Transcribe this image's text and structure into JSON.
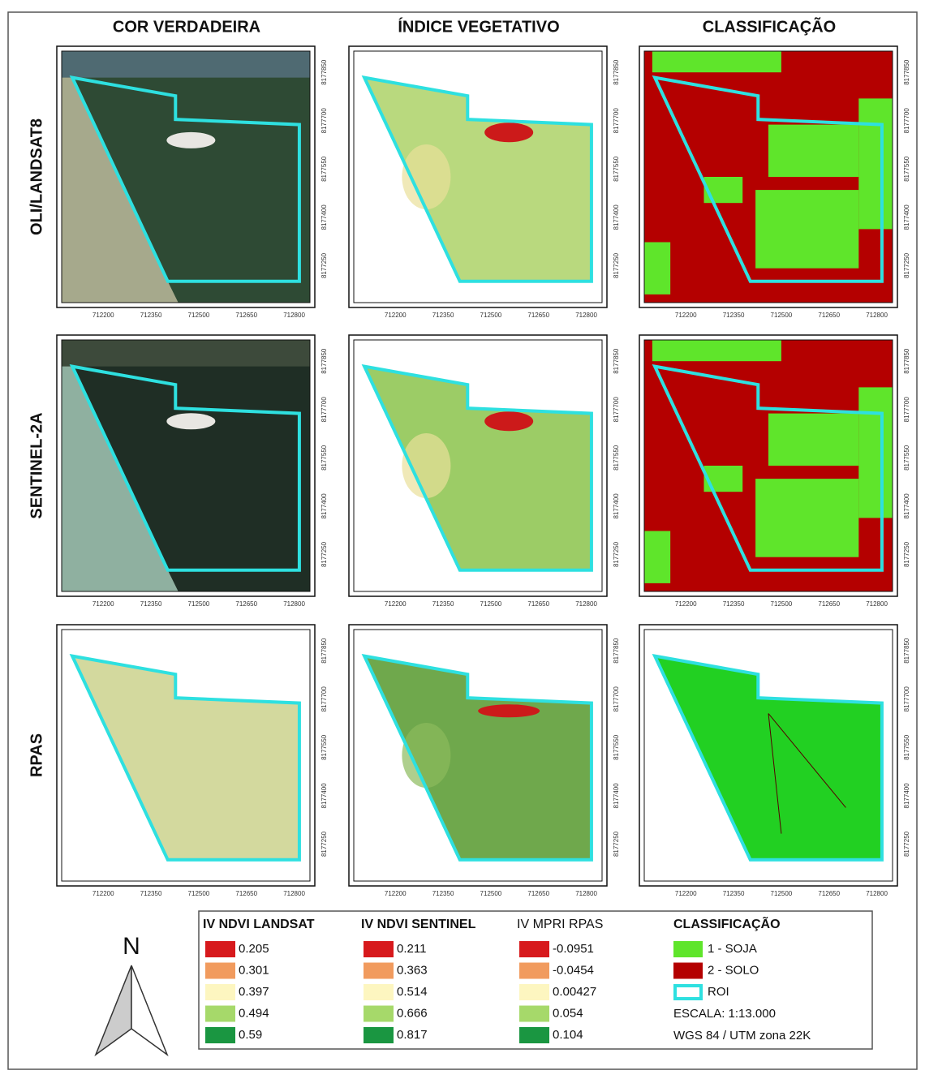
{
  "columns": [
    "COR VERDADEIRA",
    "ÍNDICE VEGETATIVO",
    "CLASSIFICAÇÃO"
  ],
  "rows": [
    "OLI/LANDSAT8",
    "SENTINEL-2A",
    "RPAS"
  ],
  "x_ticks": [
    "712200",
    "712350",
    "712500",
    "712650",
    "712800"
  ],
  "y_ticks": [
    "8177250",
    "8177400",
    "8177550",
    "8177700",
    "8177850"
  ],
  "north": "N",
  "legend": {
    "groups": [
      {
        "title": "IV NDVI LANDSAT",
        "items": [
          "0.205",
          "0.301",
          "0.397",
          "0.494",
          "0.59"
        ]
      },
      {
        "title": "IV NDVI SENTINEL",
        "items": [
          "0.211",
          "0.363",
          "0.514",
          "0.666",
          "0.817"
        ]
      },
      {
        "title": "IV MPRI  RPAS",
        "items": [
          "-0.0951",
          "-0.0454",
          "0.00427",
          "0.054",
          "0.104"
        ]
      }
    ],
    "classification": {
      "title": "CLASSIFICAÇÃO",
      "items": [
        "1 - SOJA",
        "2 - SOLO",
        "ROI"
      ],
      "scale": "ESCALA: 1:13.000",
      "crs": "WGS 84 / UTM zona 22K"
    }
  }
}
